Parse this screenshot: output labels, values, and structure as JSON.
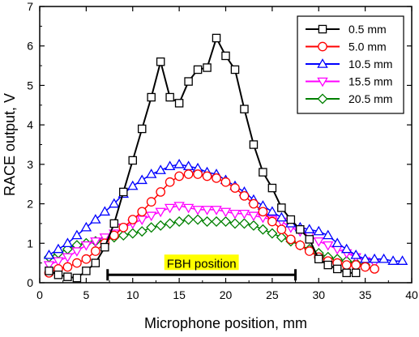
{
  "chart_data": {
    "type": "line",
    "title": "",
    "xlabel": "Microphone position, mm",
    "ylabel": "RACE output, V",
    "xlim": [
      0,
      40
    ],
    "ylim": [
      0,
      7
    ],
    "xticks": [
      0,
      5,
      10,
      15,
      20,
      25,
      30,
      35,
      40
    ],
    "yticks": [
      0,
      1,
      2,
      3,
      4,
      5,
      6,
      7
    ],
    "legend_position": "top-right",
    "annotation": {
      "label": "FBH position",
      "x_start": 7.3,
      "x_end": 27.5,
      "y": 0.2,
      "background": "#ffff00"
    },
    "series": [
      {
        "name": "0.5 mm",
        "color": "#000000",
        "marker": "square",
        "x": [
          1,
          2,
          3,
          4,
          5,
          6,
          7,
          8,
          9,
          10,
          11,
          12,
          13,
          14,
          15,
          16,
          17,
          18,
          19,
          20,
          21,
          22,
          23,
          24,
          25,
          26,
          27,
          28,
          29,
          30,
          31,
          32,
          33,
          34
        ],
        "y": [
          0.3,
          0.2,
          0.15,
          0.12,
          0.3,
          0.5,
          0.9,
          1.5,
          2.3,
          3.1,
          3.9,
          4.7,
          5.6,
          4.7,
          4.55,
          5.1,
          5.4,
          5.45,
          6.2,
          5.75,
          5.4,
          4.4,
          3.5,
          2.8,
          2.4,
          1.9,
          1.6,
          1.35,
          1.1,
          0.6,
          0.45,
          0.35,
          0.25,
          0.25
        ]
      },
      {
        "name": "5.0 mm",
        "color": "#ff0000",
        "marker": "circle",
        "x": [
          1,
          2,
          3,
          4,
          5,
          6,
          7,
          8,
          9,
          10,
          11,
          12,
          13,
          14,
          15,
          16,
          17,
          18,
          19,
          20,
          21,
          22,
          23,
          24,
          25,
          26,
          27,
          28,
          29,
          30,
          31,
          32,
          33,
          34,
          35,
          36
        ],
        "y": [
          0.25,
          0.35,
          0.4,
          0.5,
          0.6,
          0.8,
          1.0,
          1.2,
          1.4,
          1.6,
          1.8,
          2.05,
          2.3,
          2.55,
          2.7,
          2.75,
          2.75,
          2.7,
          2.65,
          2.55,
          2.4,
          2.2,
          2.0,
          1.8,
          1.55,
          1.35,
          1.1,
          0.95,
          0.8,
          0.65,
          0.55,
          0.5,
          0.45,
          0.45,
          0.4,
          0.35
        ]
      },
      {
        "name": "10.5 mm",
        "color": "#0000ff",
        "marker": "triangle-up",
        "x": [
          1,
          2,
          3,
          4,
          5,
          6,
          7,
          8,
          9,
          10,
          11,
          12,
          13,
          14,
          15,
          16,
          17,
          18,
          19,
          20,
          21,
          22,
          23,
          24,
          25,
          26,
          27,
          28,
          29,
          30,
          31,
          32,
          33,
          34,
          35,
          36,
          37,
          38,
          39
        ],
        "y": [
          0.7,
          0.85,
          1.0,
          1.2,
          1.4,
          1.6,
          1.8,
          2.0,
          2.25,
          2.45,
          2.6,
          2.75,
          2.85,
          2.95,
          3.0,
          2.95,
          2.9,
          2.8,
          2.75,
          2.6,
          2.45,
          2.3,
          2.1,
          1.95,
          1.8,
          1.65,
          1.5,
          1.4,
          1.35,
          1.3,
          1.2,
          1.0,
          0.85,
          0.7,
          0.6,
          0.6,
          0.6,
          0.55,
          0.55
        ]
      },
      {
        "name": "15.5 mm",
        "color": "#ff00ff",
        "marker": "triangle-down",
        "x": [
          1,
          2,
          3,
          4,
          5,
          6,
          7,
          8,
          9,
          10,
          11,
          12,
          13,
          14,
          15,
          16,
          17,
          18,
          19,
          20,
          21,
          22,
          23,
          24,
          25,
          26,
          27,
          28,
          29,
          30,
          31,
          32,
          33,
          34,
          35,
          36
        ],
        "y": [
          0.45,
          0.55,
          0.65,
          0.8,
          0.95,
          1.05,
          1.15,
          1.25,
          1.4,
          1.5,
          1.6,
          1.7,
          1.8,
          1.9,
          1.95,
          1.9,
          1.85,
          1.85,
          1.85,
          1.8,
          1.75,
          1.75,
          1.7,
          1.65,
          1.6,
          1.55,
          1.4,
          1.3,
          1.2,
          1.05,
          0.95,
          0.85,
          0.75,
          0.65,
          0.55,
          0.5
        ]
      },
      {
        "name": "20.5 mm",
        "color": "#008000",
        "marker": "diamond",
        "x": [
          1,
          2,
          3,
          4,
          5,
          6,
          7,
          8,
          9,
          10,
          11,
          12,
          13,
          14,
          15,
          16,
          17,
          18,
          19,
          20,
          21,
          22,
          23,
          24,
          25,
          26,
          27,
          28,
          29,
          30,
          31,
          32,
          33,
          34,
          35
        ],
        "y": [
          0.65,
          0.75,
          0.85,
          0.95,
          1.0,
          1.05,
          1.1,
          1.15,
          1.2,
          1.25,
          1.3,
          1.4,
          1.45,
          1.5,
          1.55,
          1.6,
          1.6,
          1.55,
          1.55,
          1.55,
          1.5,
          1.5,
          1.45,
          1.35,
          1.25,
          1.15,
          1.05,
          0.95,
          0.85,
          0.75,
          0.65,
          0.6,
          0.55,
          0.5,
          0.45
        ]
      }
    ]
  }
}
